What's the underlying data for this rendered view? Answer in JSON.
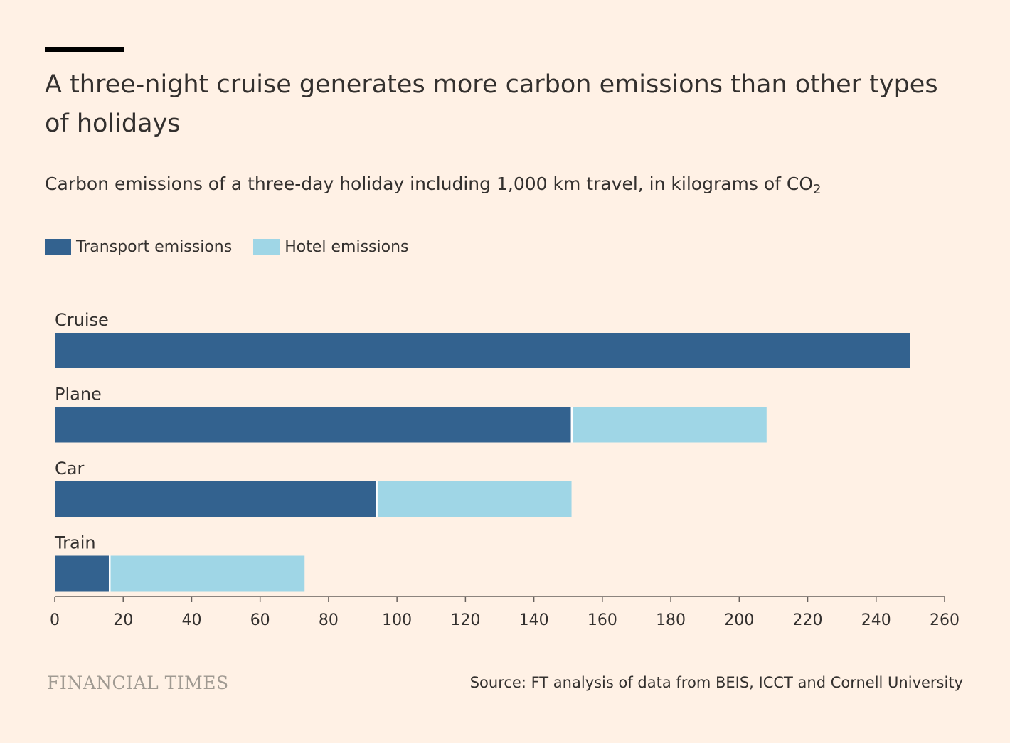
{
  "title": "A three-night cruise generates more carbon emissions than other types of holidays",
  "subtitle": {
    "text": "Carbon emissions of a three-day holiday including 1,000 km travel, in kilograms of CO",
    "subscript": "2"
  },
  "colors": {
    "background": "#FFF1E5",
    "transport": "#33628F",
    "hotel": "#9FD6E6",
    "text": "#33302E",
    "axis": "#66605C",
    "logo": "#A09A92"
  },
  "legend": {
    "transport_label": "Transport emissions",
    "hotel_label": "Hotel emissions"
  },
  "chart_data": {
    "type": "bar",
    "orientation": "horizontal",
    "stacked": true,
    "categories": [
      "Cruise",
      "Plane",
      "Car",
      "Train"
    ],
    "series": [
      {
        "name": "Transport emissions",
        "values": [
          250,
          151,
          94,
          16
        ]
      },
      {
        "name": "Hotel emissions",
        "values": [
          0,
          57,
          57,
          57
        ]
      }
    ],
    "xlim": [
      0,
      260
    ],
    "xticks": [
      0,
      20,
      40,
      60,
      80,
      100,
      120,
      140,
      160,
      180,
      200,
      220,
      240,
      260
    ],
    "xlabel": "",
    "ylabel": "",
    "legend_position": "top-left"
  },
  "footer": {
    "brand": "FINANCIAL TIMES",
    "source": "Source: FT analysis of data from BEIS, ICCT and Cornell University"
  }
}
